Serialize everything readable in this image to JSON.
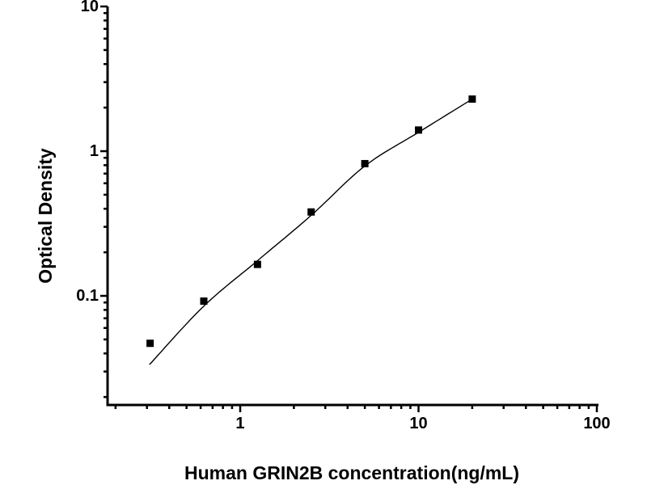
{
  "figure": {
    "background": "#ffffff",
    "ink_color": "#000000"
  },
  "chart_data": {
    "type": "scatter",
    "title": "",
    "xlabel": "Human GRIN2B concentration(ng/mL)",
    "ylabel": "Optical Density",
    "xscale": "log",
    "yscale": "log",
    "xlim": [
      0.1804,
      100
    ],
    "ylim": [
      0.01762,
      10
    ],
    "xticks": [
      1,
      10,
      100
    ],
    "xtick_labels": [
      "1",
      "10",
      "100"
    ],
    "yticks": [
      10,
      1,
      0.1
    ],
    "ytick_labels": [
      "10",
      "1",
      "0.1"
    ],
    "grid": false,
    "legend_position": "none",
    "marker": "filled-square",
    "marker_color": "#000000",
    "line_color": "#000000",
    "series": [
      {
        "name": "standard-points",
        "x": [
          0.3125,
          0.625,
          1.25,
          2.5,
          5,
          10,
          20
        ],
        "y": [
          0.047,
          0.092,
          0.165,
          0.38,
          0.82,
          1.4,
          2.29
        ]
      }
    ],
    "fit_curve": {
      "name": "fitted-standard-curve",
      "x": [
        0.31,
        0.625,
        1.25,
        2.5,
        5,
        10,
        20
      ],
      "y": [
        0.0335,
        0.085,
        0.175,
        0.36,
        0.79,
        1.35,
        2.29
      ]
    }
  }
}
